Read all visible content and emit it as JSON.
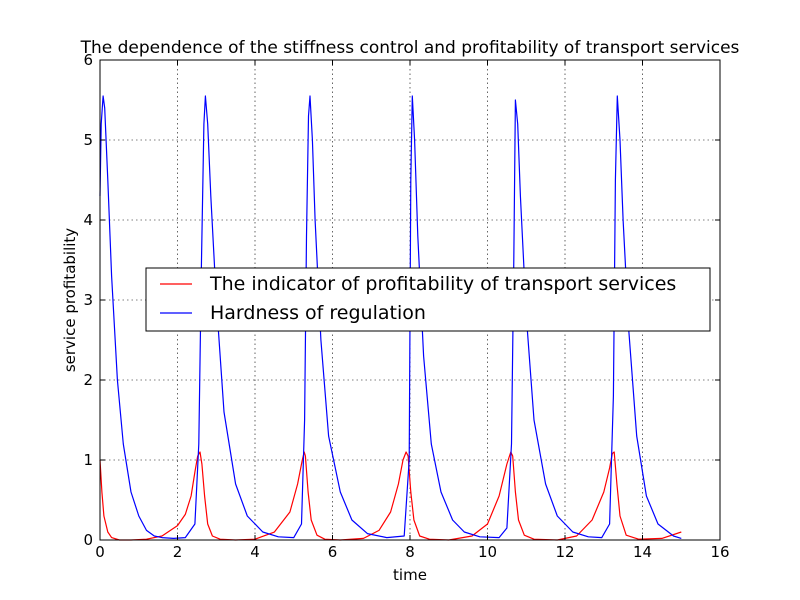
{
  "chart_data": {
    "type": "line",
    "title": "The dependence of the stiffness control and profitability of transport services",
    "xlabel": "time",
    "ylabel": "service profitability",
    "xlim": [
      0,
      16
    ],
    "ylim": [
      0,
      6
    ],
    "xticks": [
      0,
      2,
      4,
      6,
      8,
      10,
      12,
      14,
      16
    ],
    "yticks": [
      0,
      1,
      2,
      3,
      4,
      5,
      6
    ],
    "xtick_labels": [
      "0",
      "2",
      "4",
      "6",
      "8",
      "10",
      "12",
      "14",
      "16"
    ],
    "ytick_labels": [
      "0",
      "1",
      "2",
      "3",
      "4",
      "5",
      "6"
    ],
    "grid": true,
    "legend_position": "center",
    "series": [
      {
        "name": "The indicator of profitability of transport services",
        "color": "#ff0000",
        "x": [
          0,
          0.05,
          0.1,
          0.2,
          0.3,
          0.5,
          0.8,
          1.2,
          1.6,
          2.0,
          2.2,
          2.35,
          2.45,
          2.52,
          2.58,
          2.63,
          2.7,
          2.78,
          2.9,
          3.1,
          3.5,
          4.0,
          4.5,
          4.9,
          5.1,
          5.22,
          5.27,
          5.3,
          5.37,
          5.45,
          5.6,
          5.8,
          6.2,
          6.8,
          7.2,
          7.5,
          7.7,
          7.82,
          7.9,
          7.95,
          8.02,
          8.1,
          8.25,
          8.5,
          9.0,
          9.6,
          10.0,
          10.3,
          10.5,
          10.6,
          10.65,
          10.72,
          10.8,
          10.95,
          11.2,
          11.8,
          12.3,
          12.7,
          13.0,
          13.15,
          13.22,
          13.27,
          13.34,
          13.42,
          13.58,
          13.9,
          14.5,
          15.0
        ],
        "y": [
          1.0,
          0.6,
          0.3,
          0.1,
          0.03,
          0.0,
          0.0,
          0.01,
          0.05,
          0.18,
          0.32,
          0.55,
          0.85,
          1.05,
          1.1,
          0.95,
          0.55,
          0.2,
          0.05,
          0.01,
          0.0,
          0.01,
          0.1,
          0.35,
          0.7,
          1.0,
          1.1,
          1.05,
          0.6,
          0.25,
          0.06,
          0.01,
          0.0,
          0.02,
          0.12,
          0.35,
          0.7,
          1.0,
          1.1,
          1.05,
          0.6,
          0.25,
          0.05,
          0.01,
          0.0,
          0.05,
          0.2,
          0.55,
          0.95,
          1.1,
          1.05,
          0.6,
          0.25,
          0.06,
          0.01,
          0.0,
          0.05,
          0.25,
          0.6,
          0.9,
          1.08,
          1.1,
          0.7,
          0.3,
          0.06,
          0.01,
          0.02,
          0.1
        ]
      },
      {
        "name": "Hardness of regulation",
        "color": "#0000ff",
        "x": [
          0,
          0.03,
          0.08,
          0.12,
          0.2,
          0.3,
          0.45,
          0.6,
          0.8,
          1.0,
          1.2,
          1.4,
          1.6,
          1.9,
          2.2,
          2.45,
          2.55,
          2.62,
          2.68,
          2.72,
          2.78,
          2.86,
          3.0,
          3.2,
          3.5,
          3.8,
          4.2,
          4.6,
          5.0,
          5.2,
          5.28,
          5.33,
          5.38,
          5.42,
          5.48,
          5.55,
          5.7,
          5.9,
          6.2,
          6.5,
          6.9,
          7.4,
          7.85,
          7.98,
          8.02,
          8.06,
          8.12,
          8.2,
          8.35,
          8.55,
          8.8,
          9.1,
          9.4,
          9.8,
          10.3,
          10.5,
          10.62,
          10.68,
          10.72,
          10.78,
          10.85,
          11.0,
          11.2,
          11.5,
          11.8,
          12.2,
          12.6,
          12.95,
          13.15,
          13.25,
          13.3,
          13.35,
          13.42,
          13.5,
          13.65,
          13.85,
          14.1,
          14.4,
          14.8,
          15.0
        ],
        "y": [
          4.3,
          5.2,
          5.55,
          5.4,
          4.5,
          3.3,
          2.0,
          1.2,
          0.6,
          0.3,
          0.12,
          0.05,
          0.03,
          0.02,
          0.03,
          0.2,
          1.2,
          3.5,
          5.2,
          5.55,
          5.2,
          4.3,
          3.0,
          1.6,
          0.7,
          0.3,
          0.1,
          0.04,
          0.03,
          0.2,
          1.5,
          3.8,
          5.3,
          5.55,
          5.0,
          4.0,
          2.5,
          1.3,
          0.6,
          0.25,
          0.08,
          0.03,
          0.05,
          1.0,
          4.5,
          5.55,
          5.0,
          3.8,
          2.3,
          1.2,
          0.6,
          0.25,
          0.1,
          0.04,
          0.03,
          0.15,
          1.2,
          3.5,
          5.5,
          5.2,
          4.3,
          2.8,
          1.5,
          0.7,
          0.3,
          0.1,
          0.04,
          0.03,
          0.2,
          1.8,
          4.5,
          5.55,
          5.0,
          4.0,
          2.6,
          1.3,
          0.55,
          0.2,
          0.05,
          0.02
        ]
      }
    ]
  }
}
